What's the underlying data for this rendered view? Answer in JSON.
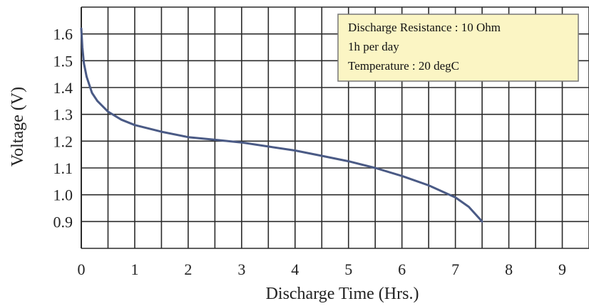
{
  "chart_data": {
    "type": "line",
    "title": "",
    "xlabel": "Discharge Time (Hrs.)",
    "ylabel": "Voltage (V)",
    "xlim": [
      0,
      9.5
    ],
    "ylim": [
      0.8,
      1.7
    ],
    "x_ticks": [
      0,
      1,
      2,
      3,
      4,
      5,
      6,
      7,
      8,
      9
    ],
    "x_tick_labels": [
      "0",
      "1",
      "2",
      "3",
      "4",
      "5",
      "6",
      "7",
      "8",
      "9"
    ],
    "y_ticks": [
      0.9,
      1.0,
      1.1,
      1.2,
      1.3,
      1.4,
      1.5,
      1.6
    ],
    "y_tick_labels": [
      "0.9",
      "1.0",
      "1.1",
      "1.2",
      "1.3",
      "1.4",
      "1.5",
      "1.6"
    ],
    "x_minor_step": 0.5,
    "y_minor_step": 0.1,
    "grid": true,
    "legend_position": "top-right",
    "annotation_lines": [
      "Discharge Resistance : 10 Ohm",
      "1h per day",
      "Temperature : 20 degC"
    ],
    "colors": {
      "series": "#4a5a85",
      "grid": "#2b2b2b",
      "annotation_fill": "#fbf5c4",
      "annotation_border": "#777777"
    },
    "series": [
      {
        "x": [
          0,
          0.02,
          0.05,
          0.1,
          0.2,
          0.3,
          0.5,
          0.75,
          1.0,
          1.5,
          2.0,
          2.5,
          3.0,
          3.5,
          4.0,
          4.5,
          5.0,
          5.5,
          6.0,
          6.5,
          7.0,
          7.25,
          7.5
        ],
        "y": [
          1.62,
          1.55,
          1.49,
          1.44,
          1.38,
          1.35,
          1.31,
          1.28,
          1.26,
          1.235,
          1.215,
          1.205,
          1.195,
          1.18,
          1.165,
          1.145,
          1.125,
          1.1,
          1.07,
          1.035,
          0.99,
          0.955,
          0.9
        ]
      }
    ]
  }
}
